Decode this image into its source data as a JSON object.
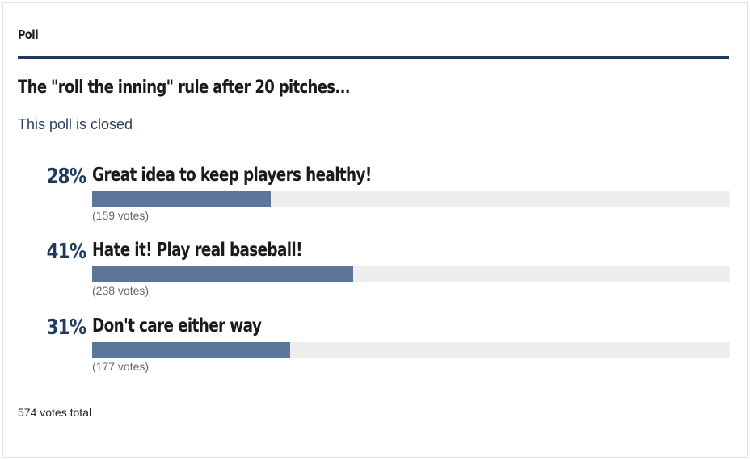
{
  "widget": {
    "title": "Poll"
  },
  "poll": {
    "question": "The \"roll the inning\" rule after 20 pitches...",
    "status": "This poll is closed",
    "options": [
      {
        "percent_label": "28%",
        "percent": 28,
        "label": "Great idea to keep players healthy!",
        "votes_label": "(159 votes)"
      },
      {
        "percent_label": "41%",
        "percent": 41,
        "label": "Hate it! Play real baseball!",
        "votes_label": "(238 votes)"
      },
      {
        "percent_label": "31%",
        "percent": 31,
        "label": "Don't care either way",
        "votes_label": "(177 votes)"
      }
    ],
    "total": "574 votes total"
  },
  "colors": {
    "accent": "#1e3a5f",
    "bar_fill": "#5c7699",
    "bar_track": "#eeeeee"
  }
}
